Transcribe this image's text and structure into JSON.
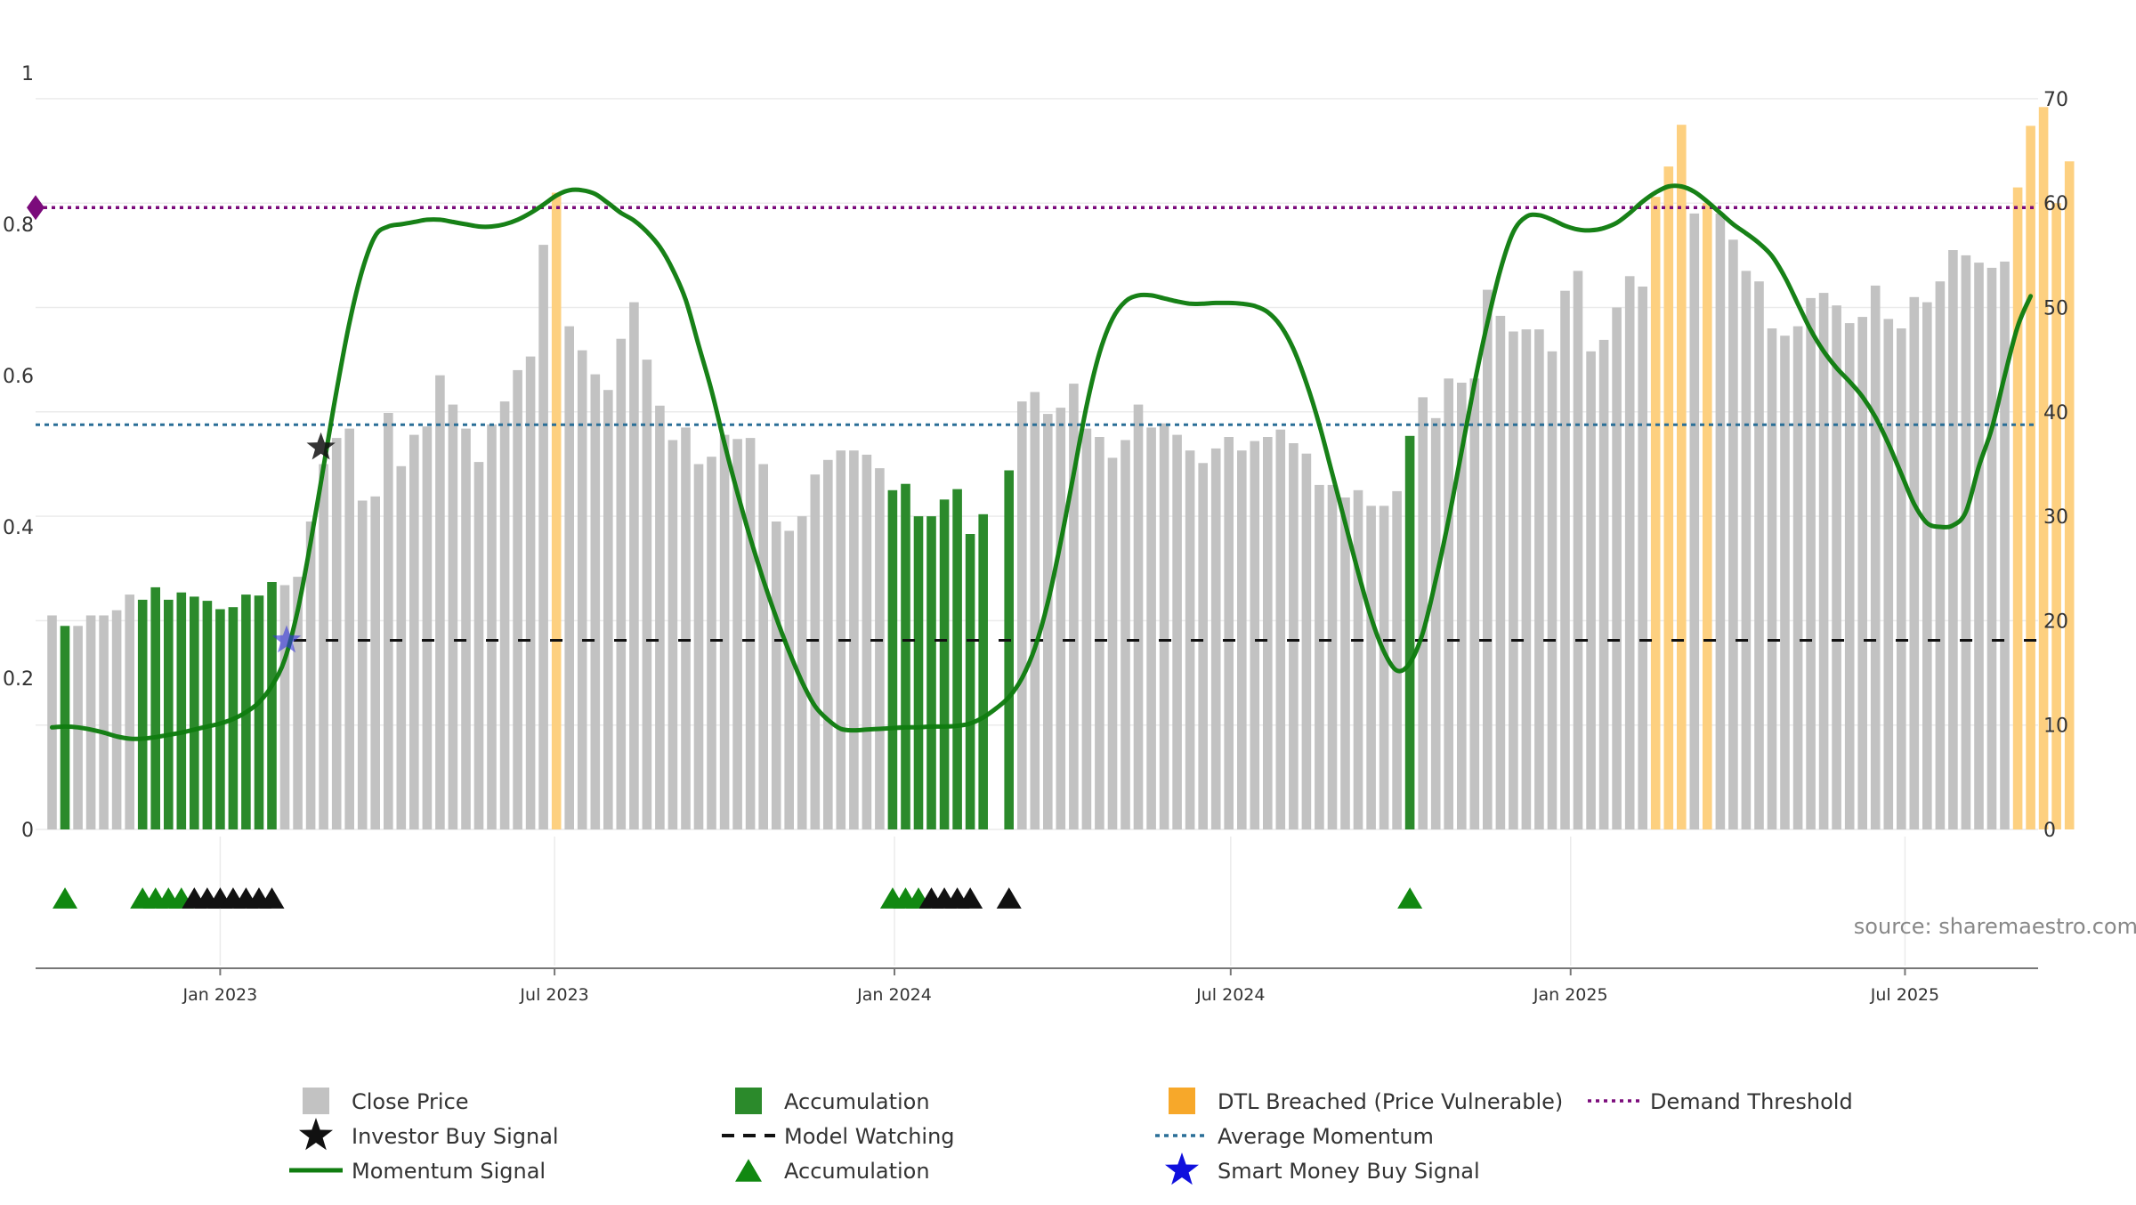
{
  "chart_data": {
    "type": "bar",
    "source": "source: sharemaestro.com",
    "colors": {
      "close": "#c2c2c2",
      "accumulation": "#2b8a2b",
      "dtl": "#fdd080",
      "momentum": "#107d10",
      "investor_star": "#111111",
      "smart_money_star": "#3333dd",
      "model_watching": "#111111",
      "average_momentum": "#2a6f97",
      "demand_threshold": "#7b0b7b",
      "triangle_green": "#118811",
      "triangle_black": "#111111"
    },
    "y_left": {
      "ticks": [
        "0",
        "0.2",
        "0.4",
        "0.6",
        "0.8",
        "1"
      ],
      "ylim": [
        0,
        1
      ]
    },
    "y_right": {
      "ticks": [
        "0",
        "10",
        "20",
        "30",
        "40",
        "50",
        "60",
        "70"
      ],
      "ylim": [
        0,
        70
      ]
    },
    "x_ticks": [
      "Jan 2023",
      "Jul 2023",
      "Jan 2024",
      "Jul 2024",
      "Jan 2025",
      "Jul 2025"
    ],
    "x_start": "2022-10-02",
    "bars": [
      {
        "v": 20.5,
        "c": "close"
      },
      {
        "v": 19.5,
        "c": "acc"
      },
      {
        "v": 19.5,
        "c": "close"
      },
      {
        "v": 20.5,
        "c": "close"
      },
      {
        "v": 20.5,
        "c": "close"
      },
      {
        "v": 21,
        "c": "close"
      },
      {
        "v": 22.5,
        "c": "close"
      },
      {
        "v": 22,
        "c": "acc"
      },
      {
        "v": 23.2,
        "c": "acc"
      },
      {
        "v": 22,
        "c": "acc"
      },
      {
        "v": 22.7,
        "c": "acc"
      },
      {
        "v": 22.3,
        "c": "acc"
      },
      {
        "v": 21.9,
        "c": "acc"
      },
      {
        "v": 21.1,
        "c": "acc"
      },
      {
        "v": 21.3,
        "c": "acc"
      },
      {
        "v": 22.5,
        "c": "acc"
      },
      {
        "v": 22.4,
        "c": "acc"
      },
      {
        "v": 23.7,
        "c": "acc"
      },
      {
        "v": 23.4,
        "c": "close"
      },
      {
        "v": 24.2,
        "c": "close"
      },
      {
        "v": 29.5,
        "c": "close"
      },
      {
        "v": 35,
        "c": "close"
      },
      {
        "v": 37.5,
        "c": "close"
      },
      {
        "v": 38.4,
        "c": "close"
      },
      {
        "v": 31.5,
        "c": "close"
      },
      {
        "v": 31.9,
        "c": "close"
      },
      {
        "v": 39.9,
        "c": "close"
      },
      {
        "v": 34.8,
        "c": "close"
      },
      {
        "v": 37.8,
        "c": "close"
      },
      {
        "v": 38.6,
        "c": "close"
      },
      {
        "v": 43.5,
        "c": "close"
      },
      {
        "v": 40.7,
        "c": "close"
      },
      {
        "v": 38.4,
        "c": "close"
      },
      {
        "v": 35.2,
        "c": "close"
      },
      {
        "v": 38.8,
        "c": "close"
      },
      {
        "v": 41,
        "c": "close"
      },
      {
        "v": 44,
        "c": "close"
      },
      {
        "v": 45.3,
        "c": "close"
      },
      {
        "v": 56,
        "c": "close"
      },
      {
        "v": 61,
        "c": "dtl"
      },
      {
        "v": 48.2,
        "c": "close"
      },
      {
        "v": 45.9,
        "c": "close"
      },
      {
        "v": 43.6,
        "c": "close"
      },
      {
        "v": 42.1,
        "c": "close"
      },
      {
        "v": 47,
        "c": "close"
      },
      {
        "v": 50.5,
        "c": "close"
      },
      {
        "v": 45,
        "c": "close"
      },
      {
        "v": 40.6,
        "c": "close"
      },
      {
        "v": 37.3,
        "c": "close"
      },
      {
        "v": 38.5,
        "c": "close"
      },
      {
        "v": 35,
        "c": "close"
      },
      {
        "v": 35.7,
        "c": "close"
      },
      {
        "v": 37.8,
        "c": "close"
      },
      {
        "v": 37.4,
        "c": "close"
      },
      {
        "v": 37.5,
        "c": "close"
      },
      {
        "v": 35,
        "c": "close"
      },
      {
        "v": 29.5,
        "c": "close"
      },
      {
        "v": 28.6,
        "c": "close"
      },
      {
        "v": 30,
        "c": "close"
      },
      {
        "v": 34,
        "c": "close"
      },
      {
        "v": 35.4,
        "c": "close"
      },
      {
        "v": 36.3,
        "c": "close"
      },
      {
        "v": 36.3,
        "c": "close"
      },
      {
        "v": 35.9,
        "c": "close"
      },
      {
        "v": 34.6,
        "c": "close"
      },
      {
        "v": 32.5,
        "c": "acc"
      },
      {
        "v": 33.1,
        "c": "acc"
      },
      {
        "v": 30,
        "c": "acc"
      },
      {
        "v": 30,
        "c": "acc"
      },
      {
        "v": 31.6,
        "c": "acc"
      },
      {
        "v": 32.6,
        "c": "acc"
      },
      {
        "v": 28.3,
        "c": "acc"
      },
      {
        "v": 30.2,
        "c": "acc"
      },
      {
        "v": 0,
        "c": "close"
      },
      {
        "v": 34.4,
        "c": "acc"
      },
      {
        "v": 41,
        "c": "close"
      },
      {
        "v": 41.9,
        "c": "close"
      },
      {
        "v": 39.8,
        "c": "close"
      },
      {
        "v": 40.4,
        "c": "close"
      },
      {
        "v": 42.7,
        "c": "close"
      },
      {
        "v": 38.4,
        "c": "close"
      },
      {
        "v": 37.6,
        "c": "close"
      },
      {
        "v": 35.6,
        "c": "close"
      },
      {
        "v": 37.3,
        "c": "close"
      },
      {
        "v": 40.7,
        "c": "close"
      },
      {
        "v": 38.5,
        "c": "close"
      },
      {
        "v": 38.9,
        "c": "close"
      },
      {
        "v": 37.8,
        "c": "close"
      },
      {
        "v": 36.3,
        "c": "close"
      },
      {
        "v": 35.1,
        "c": "close"
      },
      {
        "v": 36.5,
        "c": "close"
      },
      {
        "v": 37.6,
        "c": "close"
      },
      {
        "v": 36.3,
        "c": "close"
      },
      {
        "v": 37.2,
        "c": "close"
      },
      {
        "v": 37.6,
        "c": "close"
      },
      {
        "v": 38.3,
        "c": "close"
      },
      {
        "v": 37,
        "c": "close"
      },
      {
        "v": 36,
        "c": "close"
      },
      {
        "v": 33,
        "c": "close"
      },
      {
        "v": 33,
        "c": "close"
      },
      {
        "v": 31.8,
        "c": "close"
      },
      {
        "v": 32.5,
        "c": "close"
      },
      {
        "v": 31,
        "c": "close"
      },
      {
        "v": 31,
        "c": "close"
      },
      {
        "v": 32.4,
        "c": "close"
      },
      {
        "v": 37.7,
        "c": "acc"
      },
      {
        "v": 41.4,
        "c": "close"
      },
      {
        "v": 39.4,
        "c": "close"
      },
      {
        "v": 43.2,
        "c": "close"
      },
      {
        "v": 42.8,
        "c": "close"
      },
      {
        "v": 43.2,
        "c": "close"
      },
      {
        "v": 51.7,
        "c": "close"
      },
      {
        "v": 49.2,
        "c": "close"
      },
      {
        "v": 47.7,
        "c": "close"
      },
      {
        "v": 47.9,
        "c": "close"
      },
      {
        "v": 47.9,
        "c": "close"
      },
      {
        "v": 45.8,
        "c": "close"
      },
      {
        "v": 51.6,
        "c": "close"
      },
      {
        "v": 53.5,
        "c": "close"
      },
      {
        "v": 45.8,
        "c": "close"
      },
      {
        "v": 46.9,
        "c": "close"
      },
      {
        "v": 50,
        "c": "close"
      },
      {
        "v": 53,
        "c": "close"
      },
      {
        "v": 52,
        "c": "close"
      },
      {
        "v": 60.6,
        "c": "dtl"
      },
      {
        "v": 63.5,
        "c": "dtl"
      },
      {
        "v": 67.5,
        "c": "dtl"
      },
      {
        "v": 59,
        "c": "close"
      },
      {
        "v": 60,
        "c": "dtl"
      },
      {
        "v": 59,
        "c": "close"
      },
      {
        "v": 56.5,
        "c": "close"
      },
      {
        "v": 53.5,
        "c": "close"
      },
      {
        "v": 52.5,
        "c": "close"
      },
      {
        "v": 48,
        "c": "close"
      },
      {
        "v": 47.3,
        "c": "close"
      },
      {
        "v": 48.2,
        "c": "close"
      },
      {
        "v": 50.9,
        "c": "close"
      },
      {
        "v": 51.4,
        "c": "close"
      },
      {
        "v": 50.2,
        "c": "close"
      },
      {
        "v": 48.5,
        "c": "close"
      },
      {
        "v": 49.1,
        "c": "close"
      },
      {
        "v": 52.1,
        "c": "close"
      },
      {
        "v": 48.9,
        "c": "close"
      },
      {
        "v": 48,
        "c": "close"
      },
      {
        "v": 51,
        "c": "close"
      },
      {
        "v": 50.5,
        "c": "close"
      },
      {
        "v": 52.5,
        "c": "close"
      },
      {
        "v": 55.5,
        "c": "close"
      },
      {
        "v": 55,
        "c": "close"
      },
      {
        "v": 54.3,
        "c": "close"
      },
      {
        "v": 53.8,
        "c": "close"
      },
      {
        "v": 54.4,
        "c": "close"
      },
      {
        "v": 61.5,
        "c": "dtl"
      },
      {
        "v": 67.4,
        "c": "dtl"
      },
      {
        "v": 69.2,
        "c": "dtl"
      },
      {
        "v": 60,
        "c": "dtl"
      },
      {
        "v": 64,
        "c": "dtl"
      }
    ],
    "momentum": [
      [
        0,
        0.135
      ],
      [
        1,
        0.136
      ],
      [
        2,
        0.135
      ],
      [
        3,
        0.132
      ],
      [
        4,
        0.128
      ],
      [
        5,
        0.123
      ],
      [
        6,
        0.12
      ],
      [
        7,
        0.12
      ],
      [
        8,
        0.122
      ],
      [
        9,
        0.125
      ],
      [
        10,
        0.128
      ],
      [
        11,
        0.132
      ],
      [
        12,
        0.136
      ],
      [
        13,
        0.14
      ],
      [
        14,
        0.146
      ],
      [
        15,
        0.155
      ],
      [
        16,
        0.168
      ],
      [
        17,
        0.19
      ],
      [
        18,
        0.225
      ],
      [
        19,
        0.29
      ],
      [
        20,
        0.38
      ],
      [
        21,
        0.48
      ],
      [
        22,
        0.58
      ],
      [
        23,
        0.67
      ],
      [
        24,
        0.74
      ],
      [
        25,
        0.785
      ],
      [
        26,
        0.797
      ],
      [
        27,
        0.8
      ],
      [
        28,
        0.803
      ],
      [
        29,
        0.806
      ],
      [
        30,
        0.806
      ],
      [
        31,
        0.803
      ],
      [
        32,
        0.8
      ],
      [
        33,
        0.797
      ],
      [
        34,
        0.797
      ],
      [
        35,
        0.8
      ],
      [
        36,
        0.806
      ],
      [
        37,
        0.815
      ],
      [
        38,
        0.826
      ],
      [
        39,
        0.838
      ],
      [
        40,
        0.845
      ],
      [
        41,
        0.845
      ],
      [
        42,
        0.84
      ],
      [
        43,
        0.828
      ],
      [
        44,
        0.815
      ],
      [
        45,
        0.805
      ],
      [
        46,
        0.79
      ],
      [
        47,
        0.77
      ],
      [
        48,
        0.74
      ],
      [
        49,
        0.7
      ],
      [
        50,
        0.64
      ],
      [
        51,
        0.58
      ],
      [
        52,
        0.51
      ],
      [
        53,
        0.445
      ],
      [
        54,
        0.385
      ],
      [
        55,
        0.33
      ],
      [
        56,
        0.28
      ],
      [
        57,
        0.235
      ],
      [
        58,
        0.195
      ],
      [
        59,
        0.163
      ],
      [
        60,
        0.145
      ],
      [
        61,
        0.133
      ],
      [
        62,
        0.131
      ],
      [
        63,
        0.132
      ],
      [
        64,
        0.133
      ],
      [
        65,
        0.134
      ],
      [
        66,
        0.135
      ],
      [
        67,
        0.135
      ],
      [
        68,
        0.136
      ],
      [
        69,
        0.136
      ],
      [
        70,
        0.137
      ],
      [
        71,
        0.14
      ],
      [
        72,
        0.148
      ],
      [
        73,
        0.16
      ],
      [
        74,
        0.175
      ],
      [
        75,
        0.2
      ],
      [
        76,
        0.24
      ],
      [
        77,
        0.3
      ],
      [
        78,
        0.38
      ],
      [
        79,
        0.47
      ],
      [
        80,
        0.56
      ],
      [
        81,
        0.63
      ],
      [
        82,
        0.675
      ],
      [
        83,
        0.698
      ],
      [
        84,
        0.706
      ],
      [
        85,
        0.706
      ],
      [
        86,
        0.702
      ],
      [
        87,
        0.698
      ],
      [
        88,
        0.695
      ],
      [
        89,
        0.695
      ],
      [
        90,
        0.696
      ],
      [
        91,
        0.696
      ],
      [
        92,
        0.695
      ],
      [
        93,
        0.692
      ],
      [
        94,
        0.684
      ],
      [
        95,
        0.666
      ],
      [
        96,
        0.635
      ],
      [
        97,
        0.59
      ],
      [
        98,
        0.535
      ],
      [
        99,
        0.47
      ],
      [
        100,
        0.405
      ],
      [
        101,
        0.34
      ],
      [
        102,
        0.28
      ],
      [
        103,
        0.235
      ],
      [
        104,
        0.21
      ],
      [
        105,
        0.22
      ],
      [
        106,
        0.26
      ],
      [
        107,
        0.33
      ],
      [
        108,
        0.41
      ],
      [
        109,
        0.5
      ],
      [
        110,
        0.59
      ],
      [
        111,
        0.67
      ],
      [
        112,
        0.74
      ],
      [
        113,
        0.79
      ],
      [
        114,
        0.81
      ],
      [
        115,
        0.812
      ],
      [
        116,
        0.806
      ],
      [
        117,
        0.798
      ],
      [
        118,
        0.793
      ],
      [
        119,
        0.792
      ],
      [
        120,
        0.795
      ],
      [
        121,
        0.802
      ],
      [
        122,
        0.815
      ],
      [
        123,
        0.83
      ],
      [
        124,
        0.842
      ],
      [
        125,
        0.85
      ],
      [
        126,
        0.85
      ],
      [
        127,
        0.843
      ],
      [
        128,
        0.83
      ],
      [
        129,
        0.815
      ],
      [
        130,
        0.8
      ],
      [
        131,
        0.788
      ],
      [
        132,
        0.775
      ],
      [
        133,
        0.758
      ],
      [
        134,
        0.73
      ],
      [
        135,
        0.695
      ],
      [
        136,
        0.66
      ],
      [
        137,
        0.632
      ],
      [
        138,
        0.61
      ],
      [
        139,
        0.592
      ],
      [
        140,
        0.572
      ],
      [
        141,
        0.545
      ],
      [
        142,
        0.51
      ],
      [
        143,
        0.47
      ],
      [
        144,
        0.43
      ],
      [
        145,
        0.405
      ],
      [
        146,
        0.4
      ],
      [
        147,
        0.402
      ],
      [
        148,
        0.42
      ],
      [
        149,
        0.48
      ],
      [
        150,
        0.53
      ],
      [
        151,
        0.6
      ],
      [
        152,
        0.665
      ],
      [
        153,
        0.705
      ]
    ],
    "average_momentum": 0.535,
    "demand_threshold": 0.822,
    "model_watching_level": 0.25,
    "model_watching_from_bar": 18,
    "investor_buy_signal": {
      "bar": 21,
      "value": 0.505
    },
    "smart_money_buy_signal": {
      "bar": 18,
      "value": 0.25
    },
    "triangles": [
      {
        "bar": 1,
        "c": "green"
      },
      {
        "bar": 7,
        "c": "green"
      },
      {
        "bar": 8,
        "c": "green"
      },
      {
        "bar": 9,
        "c": "green"
      },
      {
        "bar": 10,
        "c": "green"
      },
      {
        "bar": 11,
        "c": "black"
      },
      {
        "bar": 12,
        "c": "black"
      },
      {
        "bar": 13,
        "c": "black"
      },
      {
        "bar": 14,
        "c": "black"
      },
      {
        "bar": 15,
        "c": "black"
      },
      {
        "bar": 16,
        "c": "black"
      },
      {
        "bar": 17,
        "c": "black"
      },
      {
        "bar": 65,
        "c": "green"
      },
      {
        "bar": 66,
        "c": "green"
      },
      {
        "bar": 67,
        "c": "green"
      },
      {
        "bar": 68,
        "c": "black"
      },
      {
        "bar": 69,
        "c": "black"
      },
      {
        "bar": 70,
        "c": "black"
      },
      {
        "bar": 71,
        "c": "black"
      },
      {
        "bar": 74,
        "c": "black"
      },
      {
        "bar": 105,
        "c": "green"
      }
    ],
    "legend": [
      {
        "key": "close",
        "label": "Close Price"
      },
      {
        "key": "investor",
        "label": "Investor Buy Signal"
      },
      {
        "key": "momentum",
        "label": "Momentum Signal"
      },
      {
        "key": "accumulation_bar",
        "label": "Accumulation"
      },
      {
        "key": "model_watching",
        "label": "Model Watching"
      },
      {
        "key": "accumulation_triangle",
        "label": "Accumulation"
      },
      {
        "key": "dtl",
        "label": "DTL Breached (Price Vulnerable)"
      },
      {
        "key": "average_momentum",
        "label": "Average Momentum"
      },
      {
        "key": "smart_money",
        "label": "Smart Money Buy Signal"
      },
      {
        "key": "demand_threshold",
        "label": "Demand Threshold"
      }
    ]
  }
}
